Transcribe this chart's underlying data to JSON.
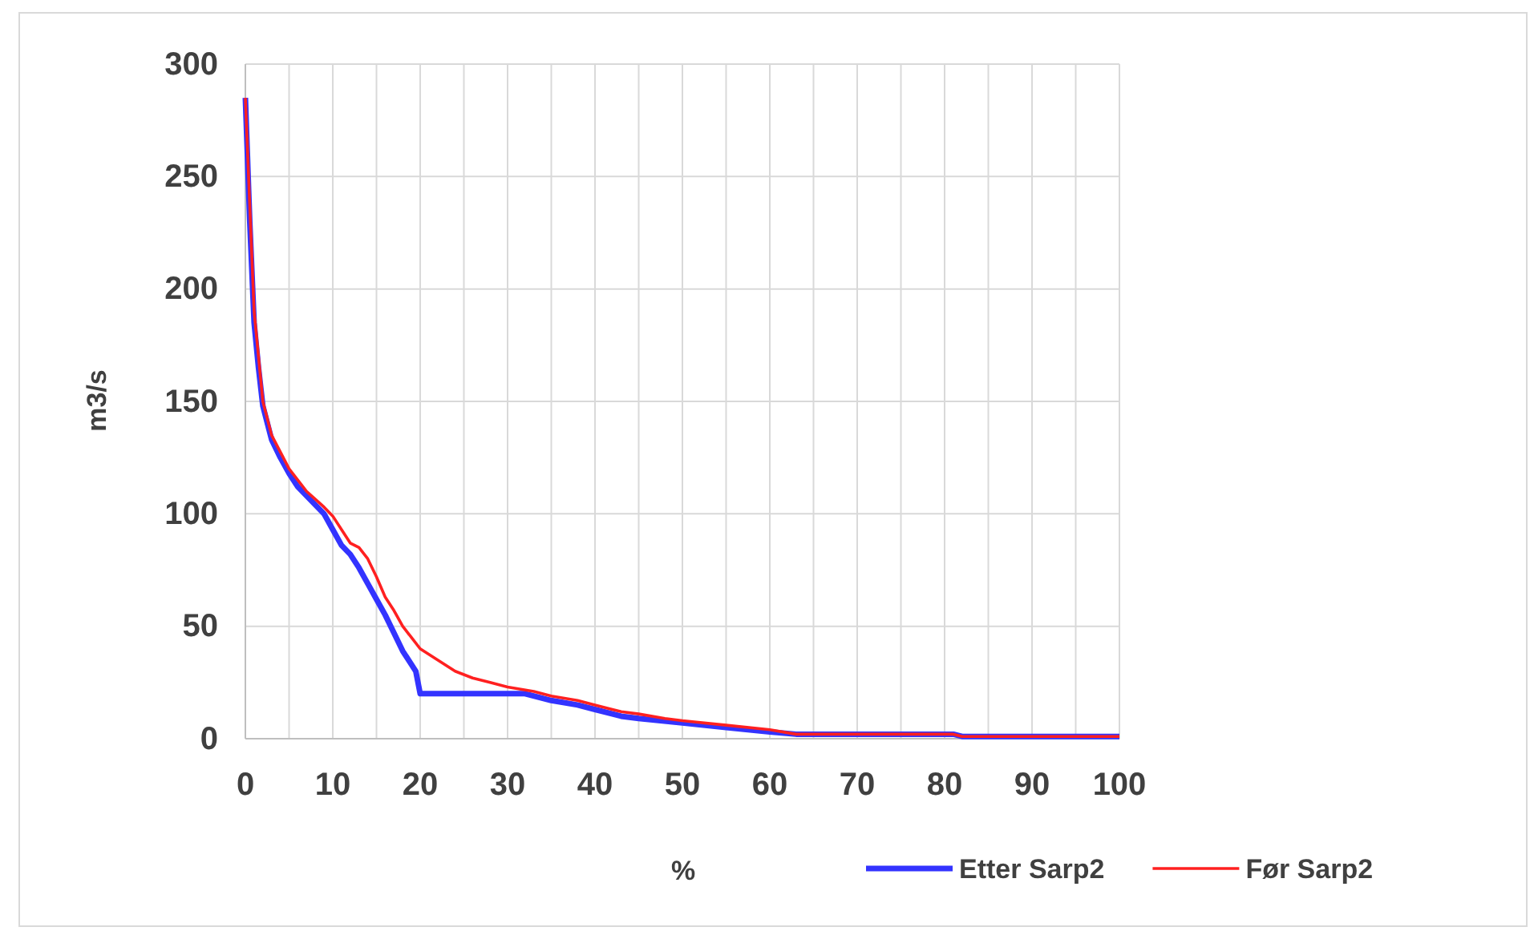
{
  "chart_data": {
    "type": "line",
    "xlabel": "%",
    "ylabel": "m3/s",
    "xlim": [
      0,
      100
    ],
    "ylim": [
      0,
      300
    ],
    "xticks": [
      0,
      10,
      20,
      30,
      40,
      50,
      60,
      70,
      80,
      90,
      100
    ],
    "yticks": [
      0,
      50,
      100,
      150,
      200,
      250,
      300
    ],
    "grid": true,
    "legend": "bottom right",
    "series": [
      {
        "name": "Etter Sarp2",
        "color": "#3333ff",
        "x": [
          0,
          0.5,
          1,
          1.5,
          2,
          3,
          4,
          5,
          6,
          7,
          8,
          9,
          10,
          11,
          12,
          13,
          14,
          15,
          16,
          17,
          18,
          19,
          19.5,
          20,
          25,
          30,
          32,
          35,
          38,
          40,
          43,
          45,
          50,
          55,
          60,
          63,
          70,
          81,
          82,
          100
        ],
        "values": [
          285,
          230,
          185,
          165,
          148,
          133,
          125,
          118,
          112,
          108,
          104,
          100,
          93,
          86,
          82,
          76,
          69,
          62,
          55,
          47,
          39,
          33,
          30,
          20,
          20,
          20,
          20,
          17,
          15,
          13,
          10,
          9,
          7,
          5,
          3,
          2,
          2,
          2,
          1,
          1
        ]
      },
      {
        "name": "Før Sarp2",
        "color": "#ff2020",
        "x": [
          0,
          1,
          2,
          3,
          5,
          7,
          9,
          10,
          11,
          12,
          13,
          14,
          15,
          16,
          17,
          18,
          19,
          20,
          22,
          24,
          26,
          28,
          30,
          33,
          35,
          38,
          40,
          43,
          45,
          48,
          50,
          55,
          60,
          63,
          70,
          81,
          82,
          100
        ],
        "values": [
          285,
          190,
          150,
          135,
          120,
          110,
          103,
          99,
          93,
          87,
          85,
          80,
          72,
          63,
          57,
          50,
          45,
          40,
          35,
          30,
          27,
          25,
          23,
          21,
          19,
          17,
          15,
          12,
          11,
          9,
          8,
          6,
          4,
          2,
          2,
          2,
          1,
          1
        ]
      }
    ]
  }
}
